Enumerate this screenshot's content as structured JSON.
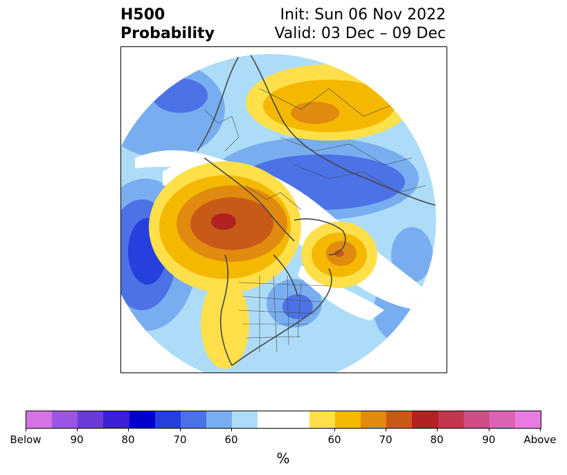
{
  "title": {
    "line1": "H500",
    "line2": "Probability",
    "init": "Init: Sun 06 Nov 2022",
    "valid": "Valid: 03 Dec – 09 Dec"
  },
  "map": {
    "projection": "north polar stereographic",
    "features": [
      "probability-shading",
      "coastlines",
      "country-borders",
      "us-state-borders"
    ]
  },
  "colorbar": {
    "unit": "%",
    "colors": [
      "#d672e6",
      "#9b55e0",
      "#6a3bd8",
      "#3a1fd6",
      "#0000cc",
      "#2640dd",
      "#4d72e6",
      "#78aef0",
      "#addcf8",
      "#ffffff",
      "#ffffff",
      "#ffe04b",
      "#f4b800",
      "#e08a10",
      "#c85a18",
      "#b22222",
      "#c2364f",
      "#cc4f86",
      "#dc62b3",
      "#e87ae2"
    ],
    "tick_labels": [
      "Below",
      "90",
      "80",
      "70",
      "60",
      "60",
      "70",
      "80",
      "90",
      "Above"
    ],
    "legend_blocks": {
      "below": "Below",
      "above": "Above"
    }
  }
}
